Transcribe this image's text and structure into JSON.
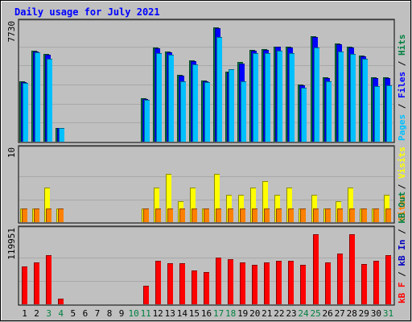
{
  "chart_data": {
    "type": "bar",
    "title": "Daily usage for July 2021",
    "days": [
      "1",
      "2",
      "3",
      "4",
      "5",
      "6",
      "7",
      "8",
      "9",
      "10",
      "11",
      "12",
      "13",
      "14",
      "15",
      "16",
      "17",
      "18",
      "19",
      "20",
      "21",
      "22",
      "23",
      "24",
      "25",
      "26",
      "27",
      "28",
      "29",
      "30",
      "31"
    ],
    "weekend_days": [
      "3",
      "4",
      "10",
      "11",
      "17",
      "18",
      "24",
      "25",
      "31"
    ],
    "panels": [
      {
        "name": "hits-files-pages",
        "ymax_label": "7730",
        "ymax": 7730,
        "legend": [
          "Pages",
          "Files",
          "Hits"
        ],
        "series": [
          {
            "name": "Hits",
            "color": "#008040",
            "values": [
              4100,
              6150,
              5950,
              900,
              0,
              0,
              0,
              0,
              0,
              0,
              2950,
              6350,
              6100,
              4500,
              5500,
              4150,
              7750,
              4750,
              5400,
              6200,
              6250,
              6450,
              6400,
              3850,
              7150,
              4350,
              6650,
              6400,
              5800,
              4350,
              4350
            ]
          },
          {
            "name": "Files",
            "color": "#0000ff",
            "values": [
              4050,
              6100,
              5900,
              900,
              0,
              0,
              0,
              0,
              0,
              0,
              2900,
              6300,
              6050,
              4450,
              5450,
              4100,
              7700,
              4700,
              5300,
              6150,
              6200,
              6400,
              6350,
              3800,
              7100,
              4300,
              6600,
              6350,
              5750,
              4300,
              4300
            ]
          },
          {
            "name": "Pages",
            "color": "#00c0ff",
            "values": [
              4000,
              6050,
              5600,
              900,
              0,
              0,
              0,
              0,
              0,
              0,
              2850,
              6000,
              5900,
              4100,
              5200,
              4050,
              7050,
              4900,
              4100,
              6000,
              6000,
              6150,
              6000,
              3650,
              6350,
              4100,
              6100,
              5950,
              5600,
              3750,
              3800
            ]
          }
        ]
      },
      {
        "name": "visits-sites",
        "ymax_label": "10",
        "ymax": 10,
        "legend": [
          "Sites",
          "Visits"
        ],
        "series": [
          {
            "name": "Visits",
            "color": "#ffff00",
            "values": [
              2,
              2,
              5,
              2,
              0,
              0,
              0,
              0,
              0,
              0,
              2,
              5,
              7,
              3,
              5,
              2,
              7,
              4,
              4,
              5,
              6,
              4,
              5,
              2,
              4,
              2,
              3,
              5,
              2,
              2,
              4
            ]
          },
          {
            "name": "Sites",
            "color": "#ff8000",
            "values": [
              2,
              2,
              2,
              2,
              0,
              0,
              0,
              0,
              0,
              0,
              2,
              2,
              2,
              2,
              2,
              2,
              2,
              2,
              2,
              2,
              2,
              2,
              2,
              2,
              2,
              2,
              2,
              2,
              2,
              2,
              2
            ]
          }
        ]
      },
      {
        "name": "kbytes",
        "ymax_label": "119951",
        "ymax": 119951,
        "legend": [
          "kB F",
          "kB In",
          "kB Out"
        ],
        "series": [
          {
            "name": "kB F",
            "color": "#ff0000",
            "values": [
              65000,
              72000,
              84000,
              10000,
              0,
              0,
              0,
              0,
              0,
              0,
              32000,
              75000,
              71000,
              71000,
              58000,
              55000,
              80000,
              77000,
              72000,
              68000,
              72000,
              74000,
              74000,
              68000,
              120000,
              72000,
              87000,
              120000,
              69000,
              74000,
              84000
            ]
          }
        ]
      }
    ]
  }
}
